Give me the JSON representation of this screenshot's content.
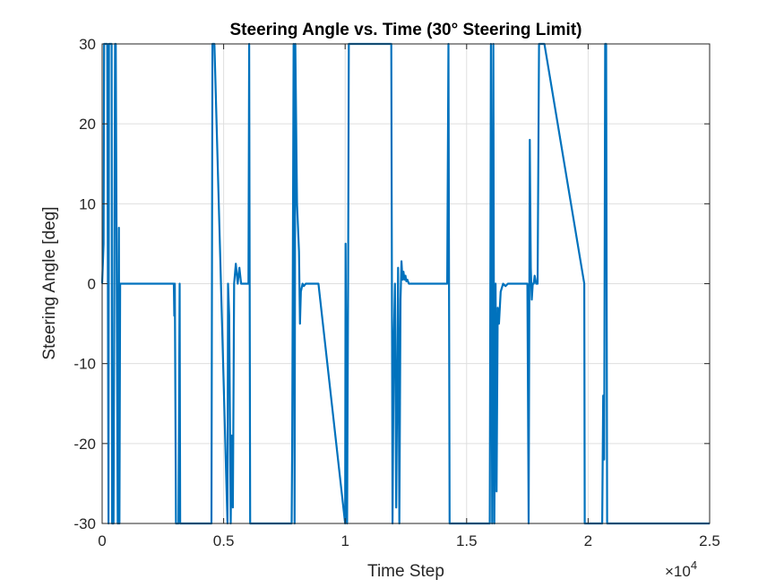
{
  "chart_data": {
    "type": "line",
    "title": "Steering Angle vs. Time (30° Steering Limit)",
    "xlabel": "Time Step",
    "ylabel": "Steering Angle [deg]",
    "x_exponent_label": "×10",
    "x_exponent_power": "4",
    "xlim": [
      0,
      25000
    ],
    "ylim": [
      -30,
      30
    ],
    "x_ticks": [
      0,
      5000,
      10000,
      15000,
      20000,
      25000
    ],
    "x_tick_labels": [
      "0",
      "0.5",
      "1",
      "1.5",
      "2",
      "2.5"
    ],
    "y_ticks": [
      -30,
      -20,
      -10,
      0,
      10,
      20,
      30
    ],
    "y_tick_labels": [
      "-30",
      "-20",
      "-10",
      "0",
      "10",
      "20",
      "30"
    ],
    "grid": true,
    "limit_lines": [
      30,
      -30
    ],
    "limit_color": "#ff0000",
    "line_color": "#0072bd",
    "series": [
      {
        "x": [
          0,
          60,
          80,
          150,
          210,
          260,
          280,
          300,
          390,
          410,
          470,
          530,
          560,
          640,
          660,
          690,
          710,
          740,
          770,
          790,
          2950,
          2970,
          2990,
          3040,
          3100,
          3140,
          3190,
          3210,
          4500,
          4540,
          4580,
          4620,
          5160,
          5180,
          5230,
          5290,
          5330,
          5380,
          5430,
          5500,
          5580,
          5650,
          5720,
          6020,
          6050,
          6090,
          7800,
          7820,
          7880,
          7920,
          7950,
          8000,
          8020,
          8100,
          8140,
          8180,
          8250,
          8300,
          8380,
          8450,
          8520,
          8600,
          8700,
          8900,
          10000,
          10020,
          10080,
          10120,
          10150,
          10180,
          10230,
          10280,
          11900,
          11950,
          12000,
          12050,
          12100,
          12180,
          12230,
          12280,
          12320,
          12360,
          12400,
          12440,
          12480,
          12520,
          12560,
          12620,
          12700,
          12800,
          12900,
          14200,
          14250,
          14300,
          15950,
          16000,
          16050,
          16100,
          16140,
          16190,
          16230,
          16280,
          16330,
          16400,
          16500,
          16600,
          16700,
          16800,
          16900,
          17500,
          17550,
          17600,
          17640,
          17680,
          17720,
          17760,
          17800,
          17860,
          17920,
          17980,
          18040,
          18100,
          18150,
          18200,
          19840,
          19860,
          19880,
          20550,
          20580,
          20620,
          20660,
          20700,
          20740,
          20780,
          25000
        ],
        "y": [
          0,
          5,
          30,
          30,
          30,
          -30,
          30,
          30,
          30,
          -30,
          -30,
          30,
          30,
          -30,
          -30,
          7,
          -30,
          0,
          0,
          0,
          0,
          -4,
          0,
          -30,
          -30,
          -30,
          0,
          -30,
          -30,
          30,
          30,
          30,
          -30,
          0,
          -4,
          -30,
          -19,
          -28,
          0,
          2.5,
          0,
          2,
          0,
          0,
          30,
          -30,
          -30,
          -20,
          30,
          -30,
          30,
          15,
          10,
          4,
          -5,
          -1,
          0,
          -0.3,
          0,
          0,
          0,
          0,
          0,
          0,
          -30,
          5,
          -30,
          0,
          30,
          30,
          30,
          30,
          30,
          -30,
          -8,
          0,
          -28,
          2,
          -30,
          -2,
          2.8,
          0.5,
          1.5,
          0.5,
          1,
          0.3,
          0.5,
          0,
          0,
          0,
          0,
          0,
          30,
          -30,
          -30,
          30,
          -30,
          30,
          -30,
          0,
          -26,
          -3,
          -5,
          -1,
          0,
          -0.3,
          0,
          0,
          0,
          0,
          -30,
          18,
          2,
          -2,
          0,
          0,
          1,
          0,
          0,
          30,
          30,
          30,
          30,
          30,
          0,
          -30,
          -30,
          -30,
          -30,
          -14,
          -22,
          30,
          30,
          -30,
          -30
        ]
      }
    ]
  }
}
